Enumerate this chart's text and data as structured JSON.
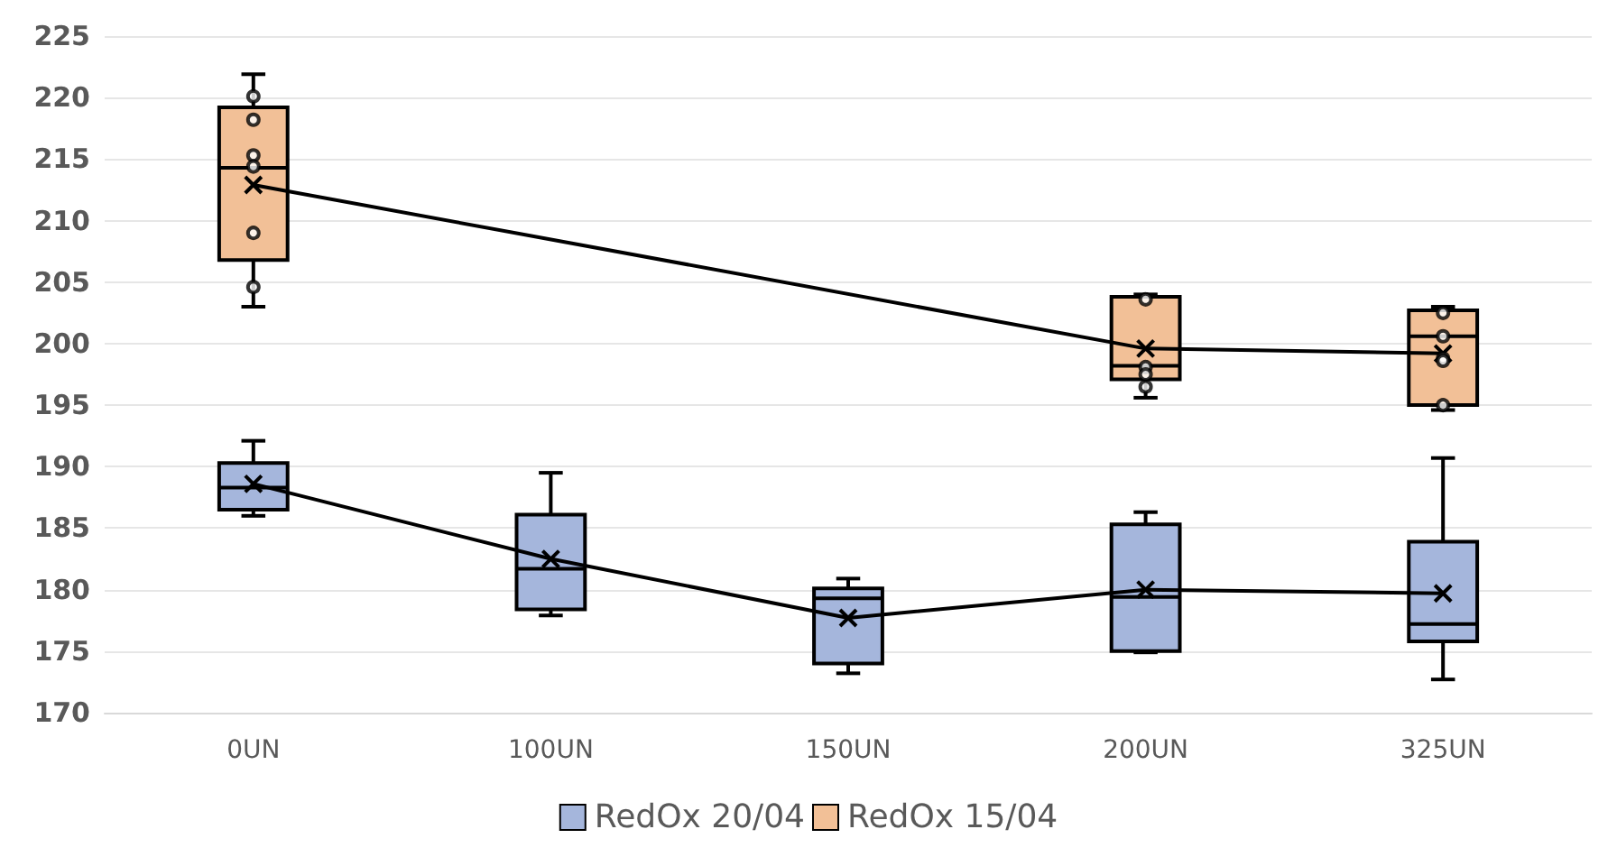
{
  "chart_data": {
    "type": "box",
    "categories": [
      "0UN",
      "100UN",
      "150UN",
      "200UN",
      "325UN"
    ],
    "ylim": [
      170,
      225
    ],
    "yticks": [
      170,
      175,
      180,
      185,
      190,
      195,
      200,
      205,
      210,
      215,
      220,
      225
    ],
    "grid": "y",
    "legend": "bottom",
    "series": [
      {
        "name": "RedOx 20/04",
        "color": "#a5b6dc",
        "boxes": [
          {
            "low": 186.0,
            "q1": 186.5,
            "median": 188.3,
            "q3": 190.3,
            "high": 192.1
          },
          {
            "low": 177.9,
            "q1": 178.4,
            "median": 181.7,
            "q3": 186.1,
            "high": 189.5
          },
          {
            "low": 173.2,
            "q1": 174.0,
            "median": 179.3,
            "q3": 180.1,
            "high": 180.9
          },
          {
            "low": 174.9,
            "q1": 175.0,
            "median": 179.4,
            "q3": 185.3,
            "high": 186.3
          },
          {
            "low": 172.7,
            "q1": 175.8,
            "median": 177.2,
            "q3": 183.9,
            "high": 190.7
          }
        ]
      },
      {
        "name": "RedOx 15/04",
        "color": "#f2c097",
        "boxes": [
          {
            "low": 203.0,
            "q1": 206.8,
            "median": 214.3,
            "q3": 219.2,
            "high": 221.9
          },
          null,
          null,
          {
            "low": 195.6,
            "q1": 197.1,
            "median": 198.2,
            "q3": 203.8,
            "high": 204.0
          },
          {
            "low": 194.6,
            "q1": 195.0,
            "median": 200.6,
            "q3": 202.7,
            "high": 203.0
          }
        ]
      },
      {
        "type": "line",
        "color": "#000000",
        "marker": "cross",
        "x": [
          "0UN",
          "100UN",
          "150UN",
          "200UN",
          "325UN"
        ],
        "values": [
          188.6,
          182.5,
          177.7,
          180.0,
          179.7
        ]
      },
      {
        "type": "line",
        "color": "#000000",
        "marker": "cross",
        "x": [
          "0UN",
          "200UN",
          "325UN"
        ],
        "values": [
          212.9,
          199.6,
          199.2
        ]
      },
      {
        "type": "scatter",
        "color": "#000000",
        "marker": "circle",
        "x": [
          "0UN",
          "0UN",
          "0UN",
          "0UN",
          "0UN",
          "0UN",
          "200UN",
          "200UN",
          "200UN",
          "200UN",
          "325UN",
          "325UN",
          "325UN",
          "325UN",
          "325UN"
        ],
        "values": [
          220.1,
          218.2,
          215.3,
          214.4,
          209.0,
          204.6,
          203.6,
          198.1,
          197.5,
          196.5,
          202.5,
          200.6,
          198.8,
          198.6,
          195.0
        ]
      }
    ]
  }
}
